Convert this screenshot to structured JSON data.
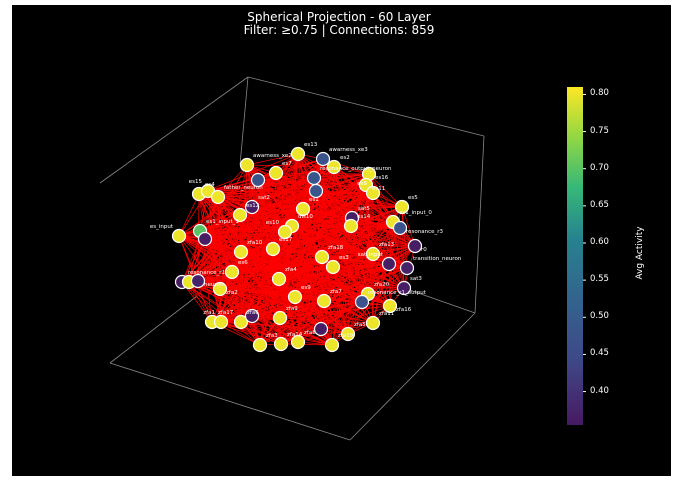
{
  "chart_data": {
    "type": "network-3d",
    "title": "Spherical Projection - 60 Layer",
    "subtitle": "Filter: ≥0.75 | Connections: 859",
    "colorbar": {
      "label": "Avg Activity",
      "range": [
        0.355,
        0.81
      ],
      "ticks": [
        "0.40",
        "0.45",
        "0.50",
        "0.55",
        "0.60",
        "0.65",
        "0.70",
        "0.75",
        "0.80"
      ],
      "colormap": "viridis"
    },
    "nodes": [
      {
        "label": "es13",
        "activity": 0.8
      },
      {
        "label": "awarness_xe3",
        "activity": 0.48
      },
      {
        "label": "es2",
        "activity": 0.8
      },
      {
        "label": "awarness_xe2",
        "activity": 0.8
      },
      {
        "label": "es7",
        "activity": 0.8
      },
      {
        "label": "",
        "activity": 0.47
      },
      {
        "label": "resonance_output_neuron",
        "activity": 0.48
      },
      {
        "label": "",
        "activity": 0.48
      },
      {
        "label": "es16",
        "activity": 0.8
      },
      {
        "label": "es11",
        "activity": 0.8
      },
      {
        "label": "es8",
        "activity": 0.8
      },
      {
        "label": "es4",
        "activity": 0.8
      },
      {
        "label": "es15",
        "activity": 0.8
      },
      {
        "label": "father_neuron",
        "activity": 0.8
      },
      {
        "label": "sat2",
        "activity": 0.36
      },
      {
        "label": "es12",
        "activity": 0.8
      },
      {
        "label": "es1",
        "activity": 0.8
      },
      {
        "label": "es5",
        "activity": 0.8
      },
      {
        "label": "sat5",
        "activity": 0.36
      },
      {
        "label": "es14",
        "activity": 0.8
      },
      {
        "label": "dis10",
        "activity": 0.8
      },
      {
        "label": "es1_input_0",
        "activity": 0.8
      },
      {
        "label": "resonance_r3",
        "activity": 0.47
      },
      {
        "label": "es1_input_1",
        "activity": 0.7
      },
      {
        "label": "es_input",
        "activity": 0.8
      },
      {
        "label": "",
        "activity": 0.36
      },
      {
        "label": "r0",
        "activity": 0.36
      },
      {
        "label": "zfa10",
        "activity": 0.8
      },
      {
        "label": "es17",
        "activity": 0.8
      },
      {
        "label": "zfa18",
        "activity": 0.8
      },
      {
        "label": "es3",
        "activity": 0.8
      },
      {
        "label": "zfa13",
        "activity": 0.8
      },
      {
        "label": "sat_input",
        "activity": 0.36
      },
      {
        "label": "transition_neuron",
        "activity": 0.37
      },
      {
        "label": "es6",
        "activity": 0.8
      },
      {
        "label": "zfa4",
        "activity": 0.8
      },
      {
        "label": "resonance_r1",
        "activity": 0.36
      },
      {
        "label": "",
        "activity": 0.8
      },
      {
        "label": "neuron",
        "activity": 0.37
      },
      {
        "label": "zfa2",
        "activity": 0.8
      },
      {
        "label": "sat3",
        "activity": 0.36
      },
      {
        "label": "zfa20",
        "activity": 0.8
      },
      {
        "label": "resonance_r1_output",
        "activity": 0.47
      },
      {
        "label": "zfa16",
        "activity": 0.8
      },
      {
        "label": "es9",
        "activity": 0.8
      },
      {
        "label": "zfa7",
        "activity": 0.8
      },
      {
        "label": "zfa17",
        "activity": 0.8
      },
      {
        "label": "zfa1",
        "activity": 0.8
      },
      {
        "label": "zfa6",
        "activity": 0.8
      },
      {
        "label": "",
        "activity": 0.36
      },
      {
        "label": "zfa9",
        "activity": 0.8
      },
      {
        "label": "",
        "activity": 0.36
      },
      {
        "label": "zfa11",
        "activity": 0.8
      },
      {
        "label": "zfa5",
        "activity": 0.8
      },
      {
        "label": "zfa3",
        "activity": 0.8
      },
      {
        "label": "zfa14",
        "activity": 0.8
      },
      {
        "label": "zfa8",
        "activity": 0.8
      },
      {
        "label": "zfa19",
        "activity": 0.8
      },
      {
        "label": "es10",
        "activity": 0.8
      }
    ],
    "edge_color": "#ff0000",
    "connections": 859
  }
}
